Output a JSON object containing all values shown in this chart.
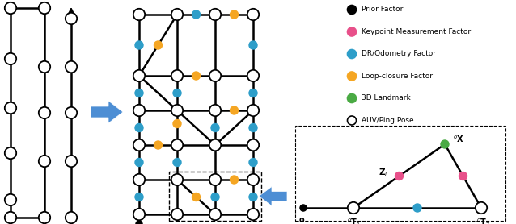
{
  "bg_color": "#ffffff",
  "BLACK": "#000000",
  "WHITE": "#ffffff",
  "TEAL": "#2e9ec9",
  "ORANGE": "#f5a623",
  "PINK": "#e8508a",
  "GREEN": "#4aaa44",
  "BLUE_ARROW": "#4d8ed4",
  "legend_items": [
    {
      "label": "Prior Factor",
      "color": "#000000"
    },
    {
      "label": "Keypoint Measurement Factor",
      "color": "#e8508a"
    },
    {
      "label": "DR/Odometry Factor",
      "color": "#2e9ec9"
    },
    {
      "label": "Loop-closure Factor",
      "color": "#f5a623"
    },
    {
      "label": "3D Landmark",
      "color": "#4aaa44"
    },
    {
      "label": "AUV/Ping Pose",
      "color": "#ffffff"
    }
  ],
  "lw_main": 1.8,
  "node_r": 0.072,
  "small_r": 0.048
}
